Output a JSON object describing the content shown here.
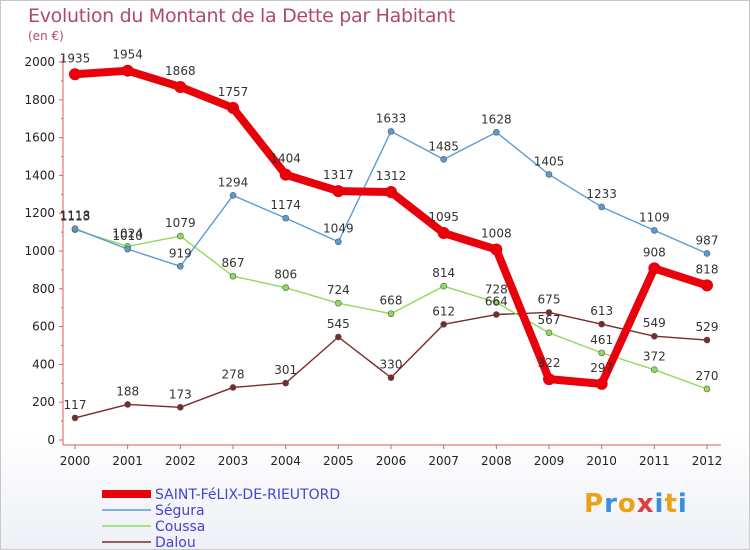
{
  "header": {
    "title": "Evolution du Montant de la Dette par Habitant",
    "unit": "(en €)"
  },
  "logo": {
    "text": "Proxiti",
    "colors": [
      "#e8a317",
      "#3a8fd8",
      "#e8a317",
      "#e03c3c",
      "#3a8fd8",
      "#e8a317",
      "#3a8fd8"
    ]
  },
  "chart_data": {
    "type": "line",
    "title": "Evolution du Montant de la Dette par Habitant",
    "ylabel": "(en €)",
    "xlabel": "",
    "ylim": [
      0,
      2000
    ],
    "yticks": [
      0,
      200,
      400,
      600,
      800,
      1000,
      1200,
      1400,
      1600,
      1800,
      2000
    ],
    "x": [
      "2000",
      "2001",
      "2002",
      "2003",
      "2004",
      "2005",
      "2006",
      "2007",
      "2008",
      "2009",
      "2010",
      "2011",
      "2012"
    ],
    "grid": false,
    "legend": "bottom-left",
    "series": [
      {
        "name": "SAINT-FéLIX-DE-RIEUTORD",
        "color": "#e8000a",
        "legend_color": "#4444cc",
        "values": [
          1935,
          1954,
          1868,
          1757,
          1404,
          1317,
          1312,
          1095,
          1008,
          322,
          297,
          908,
          818
        ]
      },
      {
        "name": "Ségura",
        "color": "#5b9bd5",
        "legend_color": "#4444cc",
        "values": [
          1118,
          1010,
          919,
          1294,
          1174,
          1049,
          1633,
          1485,
          1628,
          1405,
          1233,
          1109,
          987
        ]
      },
      {
        "name": "Coussa",
        "color": "#8fdc5a",
        "legend_color": "#4444cc",
        "values": [
          1113,
          1024,
          1079,
          867,
          806,
          724,
          668,
          814,
          728,
          567,
          461,
          372,
          270
        ]
      },
      {
        "name": "Dalou",
        "color": "#7a2a2a",
        "legend_color": "#4444cc",
        "values": [
          117,
          188,
          173,
          278,
          301,
          545,
          330,
          612,
          664,
          675,
          613,
          549,
          529
        ]
      }
    ]
  }
}
